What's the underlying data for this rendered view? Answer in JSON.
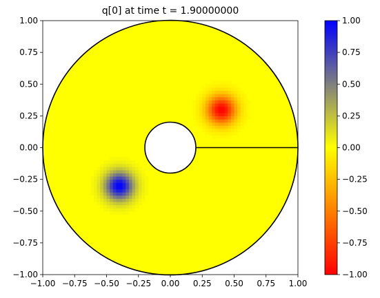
{
  "chart_data": {
    "type": "heatmap",
    "title": "q[0] at time t =     1.90000000",
    "xlabel": "",
    "ylabel": "",
    "xlim": [
      -1.0,
      1.0
    ],
    "ylim": [
      -1.0,
      1.0
    ],
    "x_ticks": [
      "−1.00",
      "−0.75",
      "−0.50",
      "−0.25",
      "0.00",
      "0.25",
      "0.50",
      "0.75",
      "1.00"
    ],
    "y_ticks": [
      "−1.00",
      "−0.75",
      "−0.50",
      "−0.25",
      "0.00",
      "0.25",
      "0.50",
      "0.75",
      "1.00"
    ],
    "domain": {
      "outer_radius": 1.0,
      "inner_radius": 0.2,
      "cut_line": {
        "x": [
          0.2,
          1.0
        ],
        "y": [
          0.0,
          0.0
        ]
      }
    },
    "background_value": 0.0,
    "blobs": [
      {
        "center": [
          0.4,
          0.3
        ],
        "peak": -1.0,
        "spread": 0.08
      },
      {
        "center": [
          -0.4,
          -0.3
        ],
        "peak": 1.0,
        "spread": 0.08
      }
    ],
    "colorbar": {
      "range": [
        -1.0,
        1.0
      ],
      "ticks": [
        "1.00",
        "0.75",
        "0.50",
        "0.25",
        "0.00",
        "−0.25",
        "−0.50",
        "−0.75",
        "−1.00"
      ],
      "colormap": [
        {
          "value": -1.0,
          "color": "#ff0000"
        },
        {
          "value": 0.0,
          "color": "#ffff00"
        },
        {
          "value": 1.0,
          "color": "#0000ff"
        }
      ]
    }
  }
}
